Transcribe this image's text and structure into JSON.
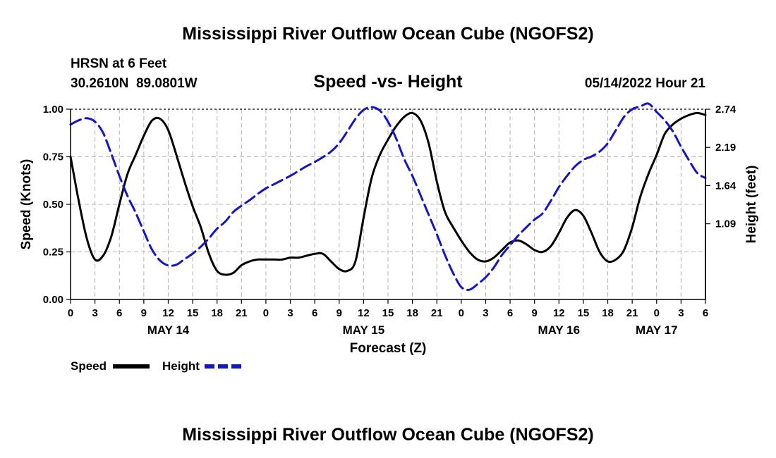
{
  "chart_data": {
    "type": "line",
    "title": "Mississippi River Outflow Ocean Cube (NGOFS2)",
    "footer_title": "Mississippi River Outflow Ocean Cube (NGOFS2)",
    "subtitle": "Speed -vs- Height",
    "station": "HRSN at 6 Feet",
    "location": "30.2610N  89.0801W",
    "datetime": "05/14/2022 Hour 21",
    "xlabel": "Forecast (Z)",
    "ylabel_left": "Speed (Knots)",
    "ylabel_right": "Height (feet)",
    "x_unit": "hours from 00Z May 14",
    "xlim": [
      0,
      78
    ],
    "ylim_left": [
      0,
      1.0
    ],
    "ylim_right_label_range": [
      0.0,
      2.74
    ],
    "left_ticks": [
      "0.00",
      "0.25",
      "0.50",
      "0.75",
      "1.00"
    ],
    "left_tick_values": [
      0,
      0.25,
      0.5,
      0.75,
      1.0
    ],
    "right_ticks": [
      "1.09",
      "1.64",
      "2.19",
      "2.74"
    ],
    "right_tick_values": [
      1.09,
      1.64,
      2.19,
      2.74
    ],
    "x_ticks": [
      "0",
      "3",
      "6",
      "9",
      "12",
      "15",
      "18",
      "21",
      "0",
      "3",
      "6",
      "9",
      "12",
      "15",
      "18",
      "21",
      "0",
      "3",
      "6",
      "9",
      "12",
      "15",
      "18",
      "21",
      "0",
      "3",
      "6"
    ],
    "date_labels": [
      {
        "label": "MAY 14",
        "hour": 12
      },
      {
        "label": "MAY 15",
        "hour": 36
      },
      {
        "label": "MAY 16",
        "hour": 60
      },
      {
        "label": "MAY 17",
        "hour": 72
      }
    ],
    "legend": [
      {
        "name": "Speed",
        "color": "#000000",
        "style": "solid"
      },
      {
        "name": "Height",
        "color": "#1515c8",
        "style": "dashed"
      }
    ],
    "grid": true,
    "series": [
      {
        "name": "Speed",
        "axis": "left",
        "color": "#000000",
        "x": [
          0,
          1,
          2,
          3,
          4,
          5,
          6,
          7,
          8,
          9,
          10,
          11,
          12,
          13,
          14,
          15,
          16,
          17,
          18,
          19,
          20,
          21,
          22,
          23,
          24,
          25,
          26,
          27,
          28,
          29,
          30,
          31,
          32,
          33,
          34,
          35,
          36,
          37,
          38,
          39,
          40,
          41,
          42,
          43,
          44,
          45,
          46,
          47,
          48,
          49,
          50,
          51,
          52,
          53,
          54,
          55,
          56,
          57,
          58,
          59,
          60,
          61,
          62,
          63,
          64,
          65,
          66,
          67,
          68,
          69,
          70,
          71,
          72,
          73,
          74,
          75,
          76,
          77,
          78
        ],
        "values": [
          0.75,
          0.52,
          0.32,
          0.21,
          0.23,
          0.33,
          0.5,
          0.66,
          0.76,
          0.86,
          0.94,
          0.95,
          0.89,
          0.76,
          0.62,
          0.49,
          0.38,
          0.24,
          0.15,
          0.13,
          0.14,
          0.18,
          0.2,
          0.21,
          0.21,
          0.21,
          0.21,
          0.22,
          0.22,
          0.23,
          0.24,
          0.24,
          0.2,
          0.16,
          0.15,
          0.2,
          0.43,
          0.64,
          0.76,
          0.84,
          0.91,
          0.96,
          0.98,
          0.94,
          0.82,
          0.62,
          0.46,
          0.38,
          0.31,
          0.25,
          0.21,
          0.2,
          0.22,
          0.26,
          0.3,
          0.31,
          0.29,
          0.26,
          0.25,
          0.28,
          0.35,
          0.43,
          0.47,
          0.44,
          0.35,
          0.25,
          0.2,
          0.21,
          0.26,
          0.38,
          0.54,
          0.66,
          0.76,
          0.87,
          0.92,
          0.95,
          0.97,
          0.98,
          0.97
        ]
      },
      {
        "name": "Height",
        "axis": "right",
        "color": "#1515c8",
        "x": [
          0,
          1,
          2,
          3,
          4,
          5,
          6,
          7,
          8,
          9,
          10,
          11,
          12,
          13,
          14,
          15,
          16,
          17,
          18,
          19,
          20,
          21,
          22,
          23,
          24,
          25,
          26,
          27,
          28,
          29,
          30,
          31,
          32,
          33,
          34,
          35,
          36,
          37,
          38,
          39,
          40,
          41,
          42,
          43,
          44,
          45,
          46,
          47,
          48,
          49,
          50,
          51,
          52,
          53,
          54,
          55,
          56,
          57,
          58,
          59,
          60,
          61,
          62,
          63,
          64,
          65,
          66,
          67,
          68,
          69,
          70,
          71,
          72,
          73,
          74,
          75,
          76,
          77,
          78
        ],
        "values": [
          2.52,
          2.58,
          2.61,
          2.56,
          2.4,
          2.1,
          1.78,
          1.49,
          1.25,
          0.98,
          0.72,
          0.56,
          0.49,
          0.5,
          0.58,
          0.66,
          0.76,
          0.88,
          1.02,
          1.12,
          1.26,
          1.35,
          1.43,
          1.52,
          1.6,
          1.66,
          1.72,
          1.78,
          1.85,
          1.92,
          1.98,
          2.05,
          2.13,
          2.25,
          2.42,
          2.6,
          2.73,
          2.77,
          2.72,
          2.56,
          2.32,
          2.02,
          1.78,
          1.5,
          1.22,
          0.94,
          0.64,
          0.38,
          0.18,
          0.14,
          0.22,
          0.32,
          0.46,
          0.64,
          0.78,
          0.92,
          1.04,
          1.15,
          1.24,
          1.42,
          1.62,
          1.78,
          1.92,
          2.01,
          2.06,
          2.13,
          2.25,
          2.44,
          2.63,
          2.74,
          2.78,
          2.82,
          2.7,
          2.58,
          2.42,
          2.2,
          2.0,
          1.82,
          1.75
        ]
      }
    ]
  }
}
